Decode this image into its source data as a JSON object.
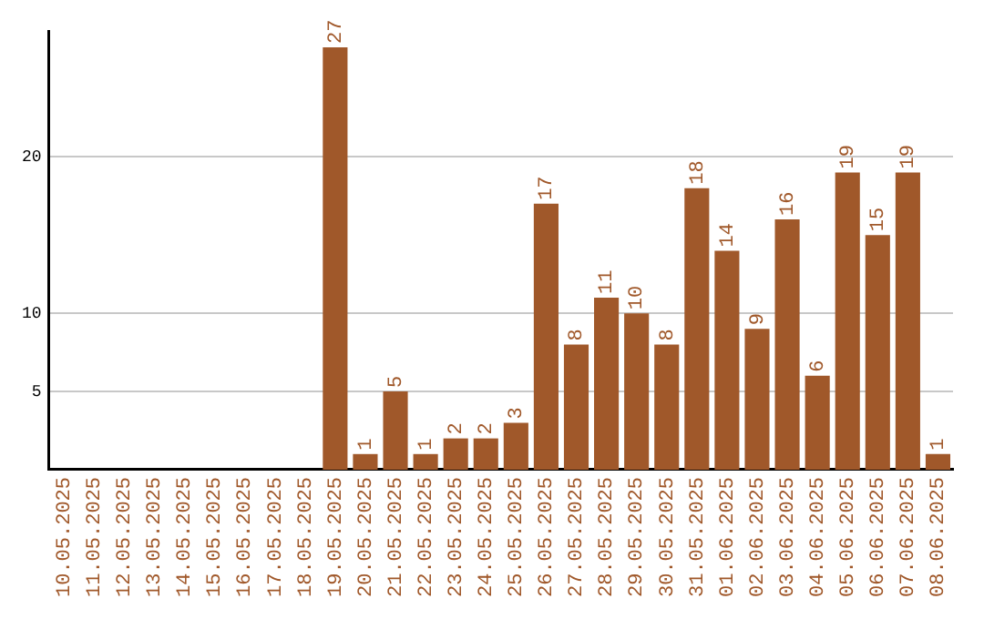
{
  "chart_data": {
    "type": "bar",
    "categories": [
      "10.05.2025",
      "11.05.2025",
      "12.05.2025",
      "13.05.2025",
      "14.05.2025",
      "15.05.2025",
      "16.05.2025",
      "17.05.2025",
      "18.05.2025",
      "19.05.2025",
      "20.05.2025",
      "21.05.2025",
      "22.05.2025",
      "23.05.2025",
      "24.05.2025",
      "25.05.2025",
      "26.05.2025",
      "27.05.2025",
      "28.05.2025",
      "29.05.2025",
      "30.05.2025",
      "31.05.2025",
      "01.06.2025",
      "02.06.2025",
      "03.06.2025",
      "04.06.2025",
      "05.06.2025",
      "06.06.2025",
      "07.06.2025",
      "08.06.2025"
    ],
    "values": [
      0,
      0,
      0,
      0,
      0,
      0,
      0,
      0,
      0,
      27,
      1,
      5,
      1,
      2,
      2,
      3,
      17,
      8,
      11,
      10,
      8,
      18,
      14,
      9,
      16,
      6,
      19,
      15,
      19,
      1
    ],
    "value_labels": [
      null,
      null,
      null,
      null,
      null,
      null,
      null,
      null,
      null,
      "27",
      "1",
      "5",
      "1",
      "2",
      "2",
      "3",
      "17",
      "8",
      "11",
      "10",
      "8",
      "18",
      "14",
      "9",
      "16",
      "6",
      "19",
      "15",
      "19",
      "1"
    ],
    "color": "#a0582a",
    "ylim": [
      0,
      28
    ],
    "yticks": [
      5,
      10,
      20
    ],
    "grid": "y"
  }
}
